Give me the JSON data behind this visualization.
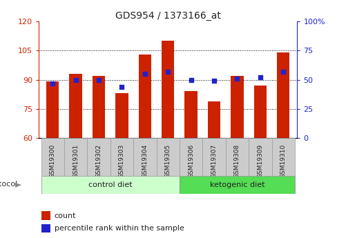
{
  "title": "GDS954 / 1373166_at",
  "samples": [
    "GSM19300",
    "GSM19301",
    "GSM19302",
    "GSM19303",
    "GSM19304",
    "GSM19305",
    "GSM19306",
    "GSM19307",
    "GSM19308",
    "GSM19309",
    "GSM19310"
  ],
  "counts": [
    89,
    93,
    92,
    83,
    103,
    110,
    84,
    79,
    92,
    87,
    104
  ],
  "percentiles": [
    47,
    50,
    50,
    44,
    55,
    57,
    50,
    49,
    51,
    52,
    57
  ],
  "ylim_left": [
    60,
    120
  ],
  "ylim_right": [
    0,
    100
  ],
  "yticks_left": [
    60,
    75,
    90,
    105,
    120
  ],
  "yticks_right": [
    0,
    25,
    50,
    75,
    100
  ],
  "ytick_labels_left": [
    "60",
    "75",
    "90",
    "105",
    "120"
  ],
  "ytick_labels_right": [
    "0",
    "25",
    "50",
    "75",
    "100%"
  ],
  "bar_color": "#cc2200",
  "dot_color": "#2222cc",
  "bar_width": 0.55,
  "control_diet_label": "control diet",
  "ketogenic_diet_label": "ketogenic diet",
  "protocol_label": "protocol",
  "legend_count": "count",
  "legend_percentile": "percentile rank within the sample",
  "background_color": "#ffffff",
  "left_axis_color": "#cc2200",
  "right_axis_color": "#2222cc",
  "control_diet_bg": "#ccffcc",
  "ketogenic_diet_bg": "#55dd55",
  "sample_cell_bg": "#cccccc",
  "sample_cell_edge": "#999999"
}
